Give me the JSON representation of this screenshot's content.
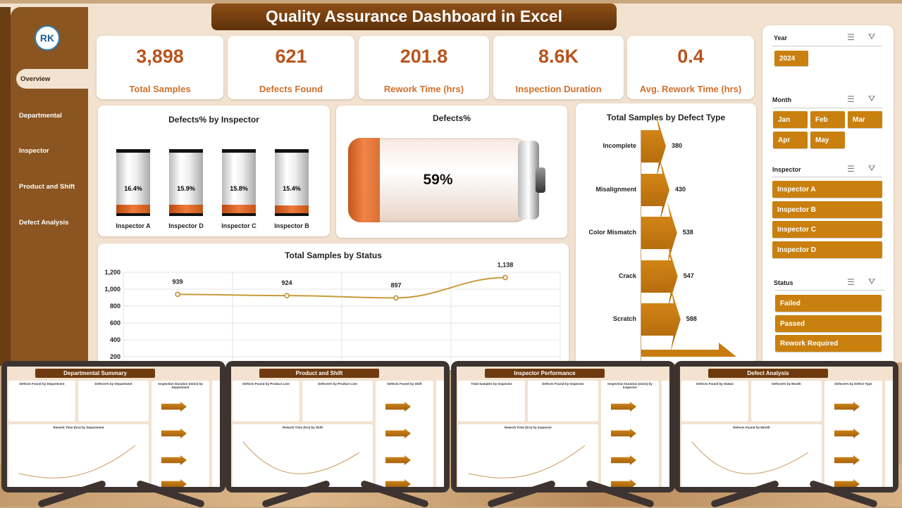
{
  "title": "Quality Assurance Dashboard in Excel",
  "logo_text": "RK",
  "nav": [
    "Overview",
    "Departmental",
    "Inspector",
    "Product and Shift",
    "Defect Analysis"
  ],
  "kpis": [
    {
      "value": "3,898",
      "label": "Total Samples"
    },
    {
      "value": "621",
      "label": "Defects Found"
    },
    {
      "value": "201.8",
      "label": "Rework Time (hrs)"
    },
    {
      "value": "8.6K",
      "label": "Inspection Duration"
    },
    {
      "value": "0.4",
      "label": "Avg. Rework Time (hrs)"
    }
  ],
  "colors": {
    "accent": "#c9800f",
    "sidebar": "#8a5520",
    "kpi_value": "#b8541d",
    "background": "#f2e2cf"
  },
  "chart_data": [
    {
      "type": "bar",
      "title": "Defects% by Inspector",
      "categories": [
        "Inspector A",
        "Inspector D",
        "Inspector C",
        "Inspector B"
      ],
      "values": [
        16.4,
        15.9,
        15.8,
        15.4
      ],
      "labels": [
        "16.4%",
        "15.9%",
        "15.8%",
        "15.4%"
      ]
    },
    {
      "type": "gauge",
      "title": "Defects%",
      "value": 59,
      "label": "59%"
    },
    {
      "type": "bar",
      "orientation": "horizontal",
      "title": "Total Samples by Defect Type",
      "categories": [
        "Incomplete",
        "Misalignment",
        "Color Mismatch",
        "Crack",
        "Scratch"
      ],
      "values": [
        380,
        430,
        538,
        547,
        588
      ]
    },
    {
      "type": "line",
      "title": "Total Samples by Status",
      "values": [
        939,
        924,
        897,
        1138
      ],
      "labels": [
        "939",
        "924",
        "897",
        "1,138"
      ],
      "yticks": [
        "1,200",
        "1,000",
        "800",
        "600",
        "400",
        "200"
      ],
      "ylim": [
        0,
        1200
      ],
      "grid": true
    }
  ],
  "slicers": {
    "year": {
      "label": "Year",
      "items": [
        "2024"
      ]
    },
    "month": {
      "label": "Month",
      "items": [
        "Jan",
        "Feb",
        "Mar",
        "Apr",
        "May"
      ]
    },
    "inspector": {
      "label": "Inspector",
      "items": [
        "Inspector A",
        "Inspector B",
        "Inspector C",
        "Inspector D"
      ]
    },
    "status": {
      "label": "Status",
      "items": [
        "Failed",
        "Passed",
        "Rework Required"
      ]
    }
  },
  "previews": [
    {
      "title": "Departmental Summary",
      "panels": [
        "Defects Found by Department",
        "Defects% by Department",
        "Inspection Duration (mins) by Department",
        "Rework Time (hrs) by Department"
      ]
    },
    {
      "title": "Product and Shift",
      "panels": [
        "Defects Found by Product Line",
        "Defects% by Product Line",
        "Defects Found by Shift",
        "Rework Time (hrs) by Shift"
      ]
    },
    {
      "title": "Inspector Performance",
      "panels": [
        "Total Samples by Inspector",
        "Defects Found by Inspector",
        "Inspection Duration (mins) by Inspector",
        "Rework Time (hrs) by Inspector"
      ]
    },
    {
      "title": "Defect Analysis",
      "panels": [
        "Defects Found by Status",
        "Defects% by Month",
        "Defects% by Defect Type",
        "Defects Found by Month"
      ]
    }
  ]
}
